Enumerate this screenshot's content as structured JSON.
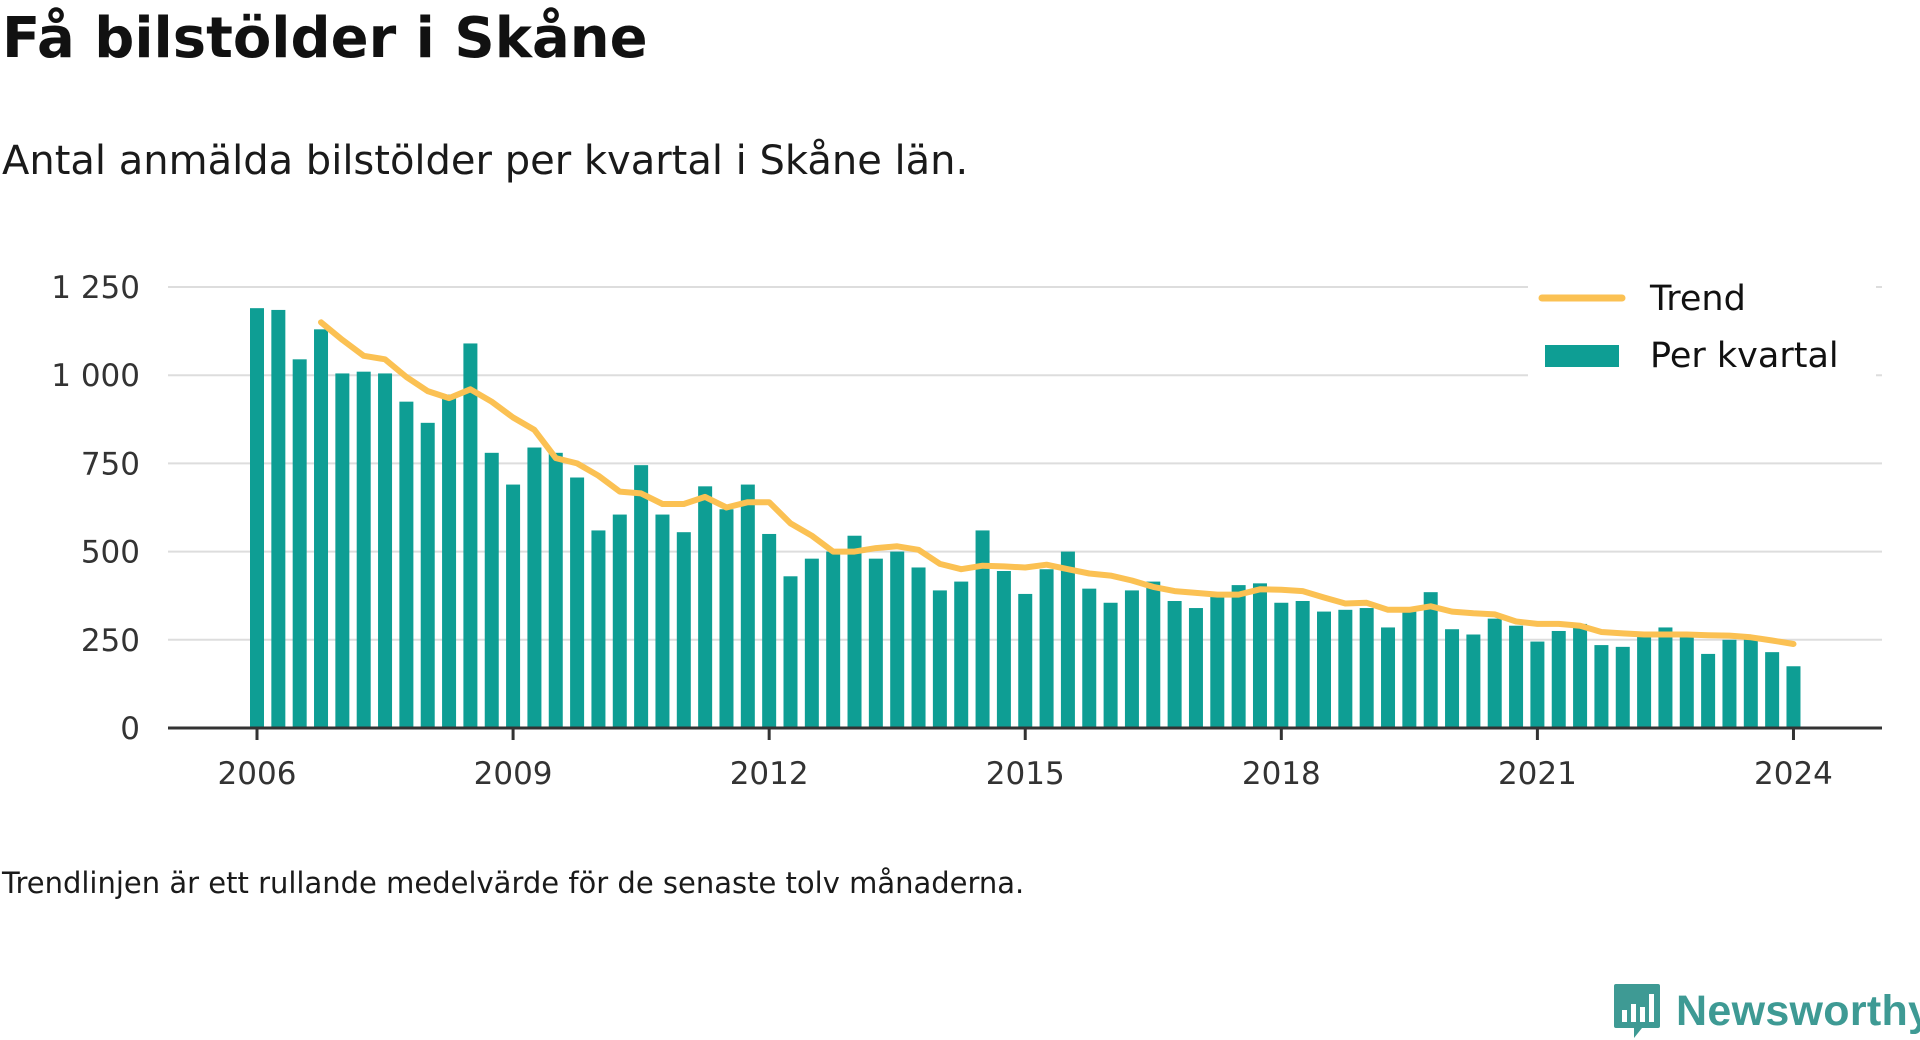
{
  "title": "Få bilstölder i Skåne",
  "subtitle": "Antal anmälda bilstölder per kvartal i Skåne län.",
  "footnote": "Trendlinjen är ett rullande medelvärde för de senaste tolv månaderna.",
  "brand": {
    "name": "Newsworthy",
    "icon": "newsworthy-logo-icon"
  },
  "colors": {
    "bar": "#0e9e94",
    "trend": "#fbc153",
    "grid": "#dddddd",
    "axis": "#333333",
    "brand": "#3e9a94"
  },
  "chart_data": {
    "type": "bar",
    "title": "",
    "xlabel": "",
    "ylabel": "",
    "ylim": [
      0,
      1250
    ],
    "y_ticks": [
      0,
      250,
      500,
      750,
      1000,
      1250
    ],
    "y_tick_labels": [
      "0",
      "250",
      "500",
      "750",
      "1 000",
      "1 250"
    ],
    "x_tick_labels": [
      "2006",
      "2009",
      "2012",
      "2015",
      "2018",
      "2021",
      "2024"
    ],
    "grid": true,
    "legend_position": "top-right",
    "categories": [
      "2006 Q1",
      "2006 Q2",
      "2006 Q3",
      "2006 Q4",
      "2007 Q1",
      "2007 Q2",
      "2007 Q3",
      "2007 Q4",
      "2008 Q1",
      "2008 Q2",
      "2008 Q3",
      "2008 Q4",
      "2009 Q1",
      "2009 Q2",
      "2009 Q3",
      "2009 Q4",
      "2010 Q1",
      "2010 Q2",
      "2010 Q3",
      "2010 Q4",
      "2011 Q1",
      "2011 Q2",
      "2011 Q3",
      "2011 Q4",
      "2012 Q1",
      "2012 Q2",
      "2012 Q3",
      "2012 Q4",
      "2013 Q1",
      "2013 Q2",
      "2013 Q3",
      "2013 Q4",
      "2014 Q1",
      "2014 Q2",
      "2014 Q3",
      "2014 Q4",
      "2015 Q1",
      "2015 Q2",
      "2015 Q3",
      "2015 Q4",
      "2016 Q1",
      "2016 Q2",
      "2016 Q3",
      "2016 Q4",
      "2017 Q1",
      "2017 Q2",
      "2017 Q3",
      "2017 Q4",
      "2018 Q1",
      "2018 Q2",
      "2018 Q3",
      "2018 Q4",
      "2019 Q1",
      "2019 Q2",
      "2019 Q3",
      "2019 Q4",
      "2020 Q1",
      "2020 Q2",
      "2020 Q3",
      "2020 Q4",
      "2021 Q1",
      "2021 Q2",
      "2021 Q3",
      "2021 Q4",
      "2022 Q1",
      "2022 Q2",
      "2022 Q3",
      "2022 Q4",
      "2023 Q1",
      "2023 Q2",
      "2023 Q3",
      "2023 Q4",
      "2024 Q1"
    ],
    "series": [
      {
        "name": "Per kvartal",
        "type": "bar",
        "values": [
          1190,
          1185,
          1045,
          1130,
          1005,
          1010,
          1005,
          925,
          865,
          945,
          1090,
          780,
          690,
          795,
          780,
          710,
          560,
          605,
          745,
          605,
          555,
          685,
          620,
          690,
          550,
          430,
          480,
          500,
          545,
          480,
          500,
          455,
          390,
          415,
          560,
          445,
          380,
          450,
          500,
          395,
          355,
          390,
          415,
          360,
          340,
          375,
          405,
          410,
          355,
          360,
          330,
          335,
          340,
          285,
          330,
          385,
          280,
          265,
          310,
          290,
          245,
          275,
          295,
          235,
          230,
          265,
          285,
          260,
          210,
          250,
          255,
          215,
          175
        ]
      },
      {
        "name": "Trend",
        "type": "line",
        "values": [
          null,
          null,
          null,
          1150,
          1100,
          1055,
          1045,
          995,
          955,
          935,
          960,
          925,
          880,
          845,
          765,
          750,
          715,
          670,
          665,
          635,
          635,
          655,
          625,
          640,
          640,
          580,
          545,
          500,
          500,
          510,
          515,
          505,
          465,
          450,
          460,
          458,
          455,
          463,
          450,
          438,
          432,
          418,
          400,
          388,
          383,
          378,
          378,
          393,
          392,
          388,
          370,
          353,
          355,
          335,
          335,
          345,
          330,
          325,
          322,
          302,
          295,
          295,
          290,
          272,
          268,
          265,
          265,
          265,
          263,
          262,
          257,
          248,
          238
        ]
      }
    ]
  }
}
